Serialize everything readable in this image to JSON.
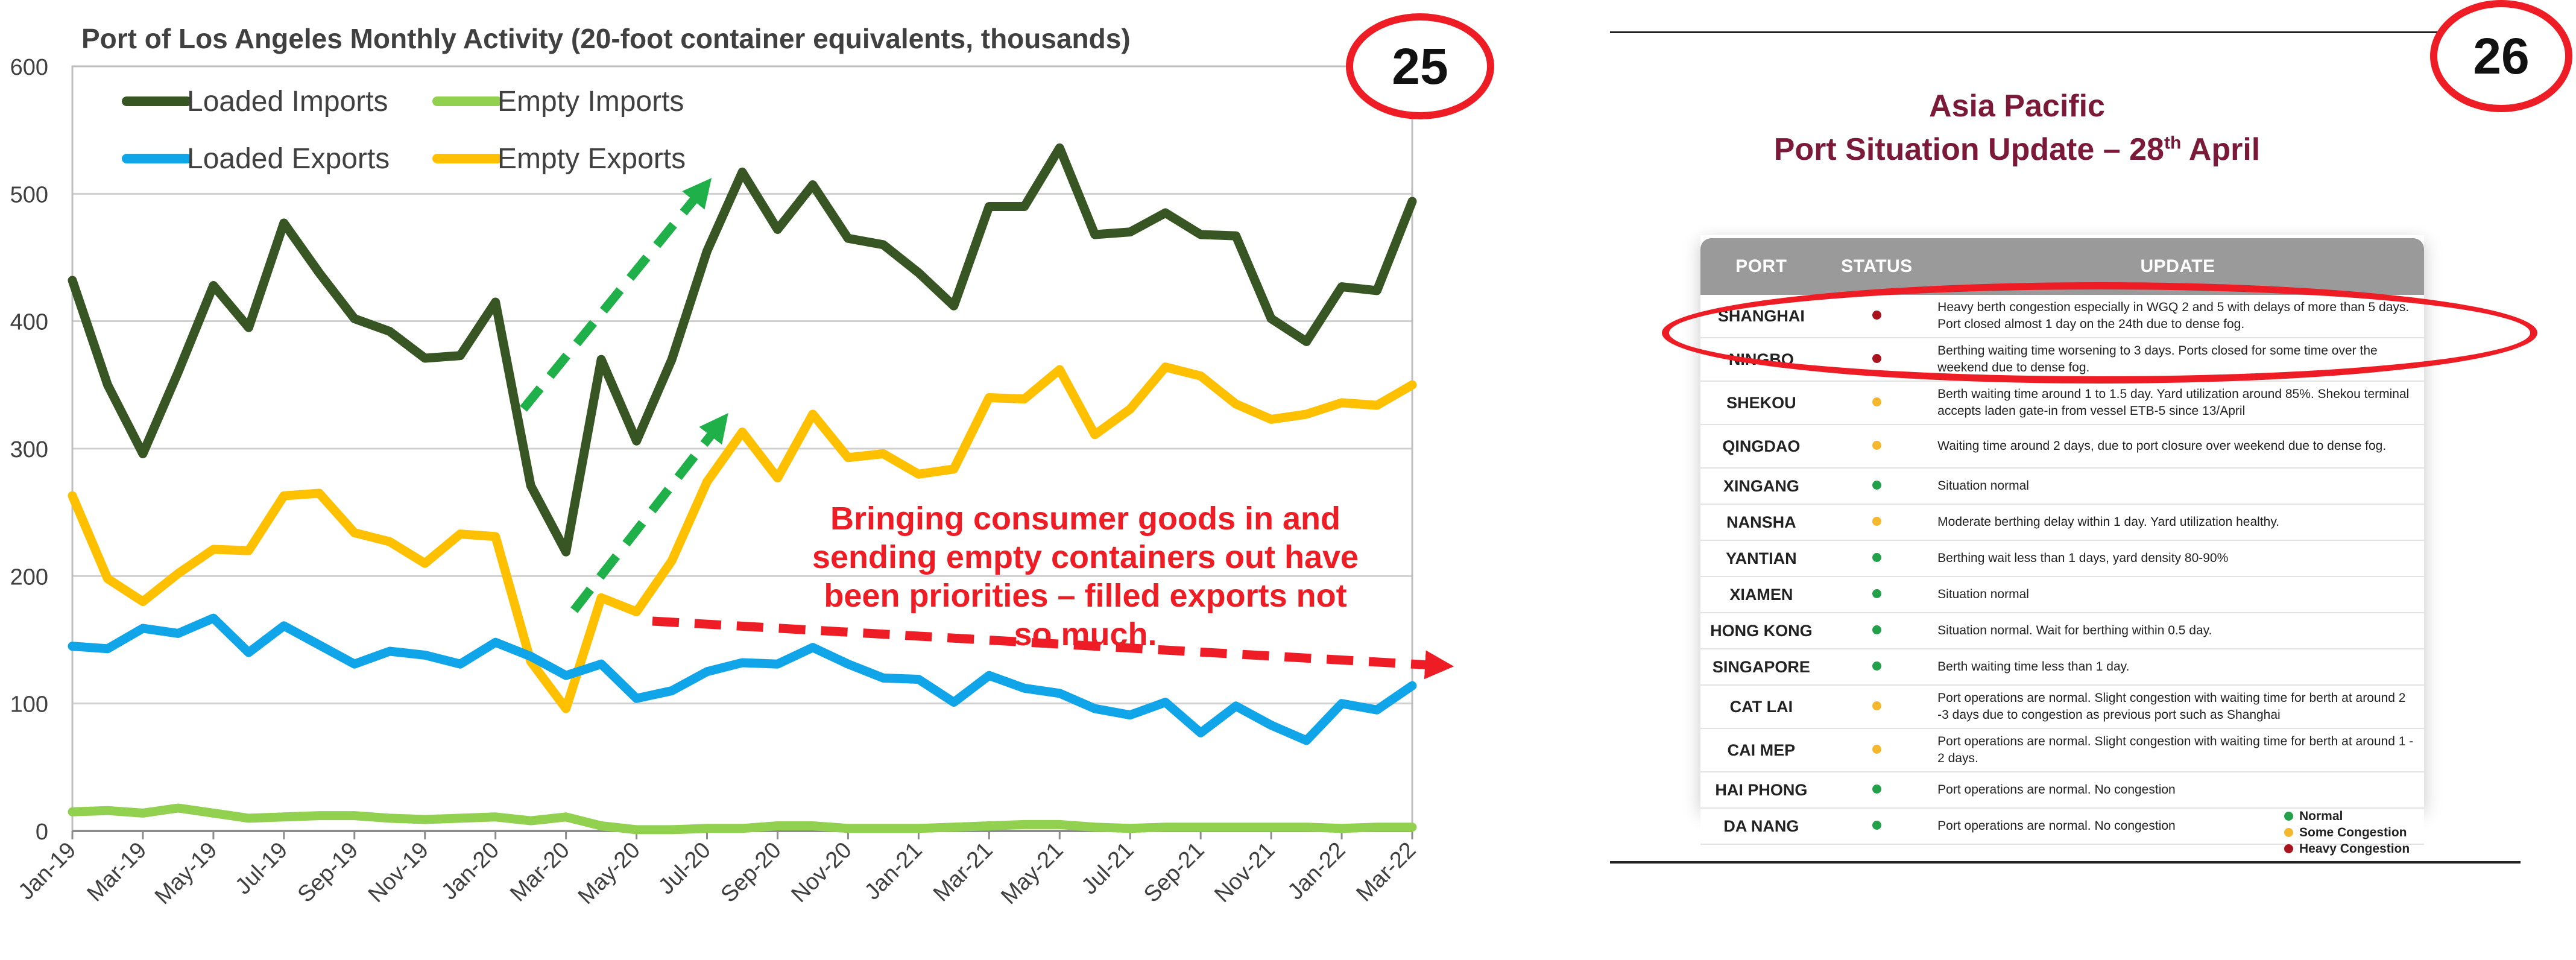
{
  "slide25": {
    "badge": "25",
    "annotation": "Bringing consumer goods in and sending empty containers out have been priorities – filled exports not so much.",
    "annotation_lines": [
      "Bringing consumer goods in and",
      "sending empty containers out have",
      "been priorities – filled exports not",
      "so much."
    ],
    "annotation_color": "#ee1c24",
    "arrow_color_green": "#1fb04a",
    "arrow_color_red": "#ee1c24"
  },
  "chart_data": {
    "type": "line",
    "title": "Port of Los Angeles Monthly Activity (20-foot container equivalents, thousands)",
    "xlabel": "",
    "ylabel": "",
    "ylim": [
      0,
      600
    ],
    "yticks": [
      0,
      100,
      200,
      300,
      400,
      500,
      600
    ],
    "grid": "horizontal",
    "legend_position": "top-left",
    "x": [
      "Jan-19",
      "Feb-19",
      "Mar-19",
      "Apr-19",
      "May-19",
      "Jun-19",
      "Jul-19",
      "Aug-19",
      "Sep-19",
      "Oct-19",
      "Nov-19",
      "Dec-19",
      "Jan-20",
      "Feb-20",
      "Mar-20",
      "Apr-20",
      "May-20",
      "Jun-20",
      "Jul-20",
      "Aug-20",
      "Sep-20",
      "Oct-20",
      "Nov-20",
      "Dec-20",
      "Jan-21",
      "Feb-21",
      "Mar-21",
      "Apr-21",
      "May-21",
      "Jun-21",
      "Jul-21",
      "Aug-21",
      "Sep-21",
      "Oct-21",
      "Nov-21",
      "Dec-21",
      "Jan-22",
      "Feb-22",
      "Mar-22"
    ],
    "xtick_labels": [
      "Jan-19",
      "Mar-19",
      "May-19",
      "Jul-19",
      "Sep-19",
      "Nov-19",
      "Jan-20",
      "Mar-20",
      "May-20",
      "Jul-20",
      "Sep-20",
      "Nov-20",
      "Jan-21",
      "Mar-21",
      "May-21",
      "Jul-21",
      "Sep-21",
      "Nov-21",
      "Jan-22",
      "Mar-22"
    ],
    "series": [
      {
        "name": "Loaded Imports",
        "color": "#375623",
        "values": [
          432,
          350,
          296,
          360,
          428,
          395,
          477,
          438,
          402,
          392,
          371,
          373,
          415,
          271,
          219,
          370,
          306,
          370,
          455,
          517,
          472,
          507,
          465,
          460,
          438,
          412,
          490,
          490,
          536,
          468,
          470,
          485,
          468,
          467,
          402,
          384,
          427,
          424,
          494
        ]
      },
      {
        "name": "Empty Imports",
        "color": "#92d050",
        "values": [
          15,
          16,
          14,
          18,
          14,
          10,
          11,
          12,
          12,
          10,
          9,
          10,
          11,
          8,
          11,
          4,
          1,
          1,
          2,
          2,
          4,
          4,
          2,
          2,
          2,
          3,
          4,
          5,
          5,
          3,
          2,
          3,
          3,
          3,
          3,
          3,
          2,
          3,
          3
        ]
      },
      {
        "name": "Loaded Exports",
        "color": "#10a5e8",
        "values": [
          145,
          143,
          159,
          155,
          167,
          140,
          161,
          146,
          131,
          141,
          138,
          131,
          148,
          137,
          122,
          131,
          104,
          110,
          125,
          132,
          131,
          144,
          131,
          120,
          119,
          101,
          122,
          112,
          108,
          96,
          91,
          101,
          77,
          98,
          83,
          71,
          100,
          95,
          114
        ]
      },
      {
        "name": "Empty Exports",
        "color": "#ffc000",
        "values": [
          263,
          198,
          180,
          202,
          221,
          220,
          263,
          265,
          234,
          227,
          210,
          233,
          231,
          133,
          96,
          183,
          172,
          212,
          274,
          313,
          277,
          327,
          293,
          296,
          280,
          284,
          340,
          339,
          362,
          311,
          331,
          364,
          357,
          335,
          323,
          327,
          336,
          334,
          350
        ]
      }
    ]
  },
  "slide26": {
    "badge": "26",
    "title_line1": "Asia Pacific",
    "title_line2_prefix": "Port Situation Update – 28",
    "title_line2_sup": "th",
    "title_line2_suffix": " April",
    "title_color": "#7b1a38",
    "headers": [
      "PORT",
      "STATUS",
      "UPDATE"
    ],
    "rows": [
      {
        "port": "SHANGHAI",
        "status": "heavy",
        "update": "Heavy berth congestion especially in WGQ 2 and 5 with delays of more than 5 days. Port closed almost 1 day on the 24th due to dense fog."
      },
      {
        "port": "NINGBO",
        "status": "heavy",
        "update": "Berthing waiting time worsening to 3 days. Ports closed for some time over the weekend due to dense fog."
      },
      {
        "port": "SHEKOU",
        "status": "some",
        "update": "Berth waiting time around 1 to 1.5 day. Yard utilization around 85%. Shekou terminal accepts laden gate-in from vessel ETB-5 since 13/April"
      },
      {
        "port": "QINGDAO",
        "status": "some",
        "update": "Waiting time around 2 days, due to port closure over weekend due to dense fog."
      },
      {
        "port": "XINGANG",
        "status": "normal",
        "update": "Situation normal"
      },
      {
        "port": "NANSHA",
        "status": "some",
        "update": "Moderate berthing delay within 1 day. Yard utilization healthy."
      },
      {
        "port": "YANTIAN",
        "status": "normal",
        "update": "Berthing wait less than 1 days, yard density 80-90%"
      },
      {
        "port": "XIAMEN",
        "status": "normal",
        "update": "Situation normal"
      },
      {
        "port": "HONG KONG",
        "status": "normal",
        "update": "Situation normal. Wait for berthing within 0.5 day."
      },
      {
        "port": "SINGAPORE",
        "status": "normal",
        "update": "Berth waiting time less than 1 day."
      },
      {
        "port": "CAT LAI",
        "status": "some",
        "update": "Port operations are normal. Slight congestion with waiting time for berth at around 2 -3 days due to congestion as previous port such as Shanghai"
      },
      {
        "port": "CAI MEP",
        "status": "some",
        "update": "Port operations are normal. Slight congestion with waiting time for berth at around 1 - 2 days."
      },
      {
        "port": "HAI PHONG",
        "status": "normal",
        "update": "Port operations are normal. No congestion"
      },
      {
        "port": "DA NANG",
        "status": "normal",
        "update": "Port operations are normal. No congestion"
      }
    ],
    "legend": [
      {
        "status": "normal",
        "label": "Normal"
      },
      {
        "status": "some",
        "label": "Some Congestion"
      },
      {
        "status": "heavy",
        "label": "Heavy Congestion"
      }
    ],
    "status_colors": {
      "normal": "#22a04a",
      "some": "#f4b82e",
      "heavy": "#a8141e"
    },
    "highlight_color": "#ee1c24"
  }
}
